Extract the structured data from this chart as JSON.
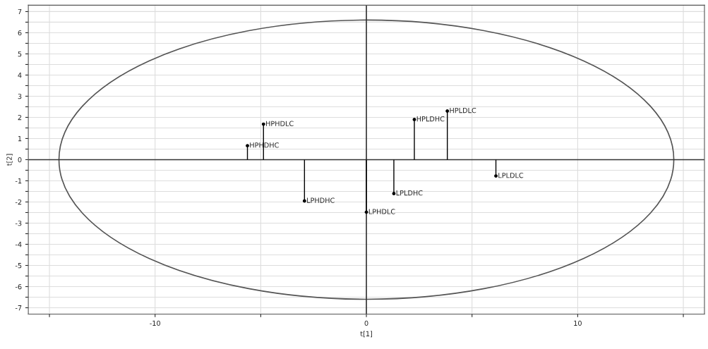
{
  "chart_data": {
    "type": "lollipop",
    "xlabel": "t[1]",
    "ylabel": "t[2]",
    "xlim": [
      -16,
      16
    ],
    "ylim": [
      -7.3,
      7.3
    ],
    "xticks": [
      {
        "value": -15,
        "label": null
      },
      -10,
      {
        "value": -5,
        "label": null
      },
      0,
      {
        "value": 5,
        "label": null
      },
      10,
      {
        "value": 15,
        "label": null
      }
    ],
    "yticks": [
      -7,
      {
        "value": -6.5,
        "label": null
      },
      -6,
      {
        "value": -5.5,
        "label": null
      },
      -5,
      {
        "value": -4.5,
        "label": null
      },
      -4,
      {
        "value": -3.5,
        "label": null
      },
      -3,
      {
        "value": -2.5,
        "label": null
      },
      -2,
      {
        "value": -1.5,
        "label": null
      },
      -1,
      {
        "value": -0.5,
        "label": null
      },
      0,
      {
        "value": 0.5,
        "label": null
      },
      1,
      {
        "value": 1.5,
        "label": null
      },
      2,
      {
        "value": 2.5,
        "label": null
      },
      3,
      {
        "value": 3.5,
        "label": null
      },
      4,
      {
        "value": 4.5,
        "label": null
      },
      5,
      {
        "value": 5.5,
        "label": null
      },
      6,
      {
        "value": 6.5,
        "label": null
      },
      7
    ],
    "grid": true,
    "legend": false,
    "series": [
      {
        "color": "#000000",
        "marker": "circle",
        "x": [
          -5.63,
          -4.87,
          -2.93,
          0.0,
          1.3,
          2.27,
          3.83,
          6.13
        ],
        "values": [
          0.66,
          1.68,
          -1.95,
          -2.48,
          -1.6,
          1.9,
          2.3,
          -0.77
        ]
      }
    ],
    "annotations": [
      {
        "text": "HPHDHC",
        "x": -5.63,
        "y": 0.66
      },
      {
        "text": "HPHDLC",
        "x": -4.87,
        "y": 1.68
      },
      {
        "text": "LPHDHC",
        "x": -2.93,
        "y": -1.95
      },
      {
        "text": "LPHDLC",
        "x": 0.0,
        "y": -2.48
      },
      {
        "text": "LPLDHC",
        "x": 1.3,
        "y": -1.6
      },
      {
        "text": "HPLDHC",
        "x": 2.27,
        "y": 1.9
      },
      {
        "text": "HPLDLC",
        "x": 3.83,
        "y": 2.3
      },
      {
        "text": "LPLDLC",
        "x": 6.13,
        "y": -0.77
      }
    ]
  }
}
